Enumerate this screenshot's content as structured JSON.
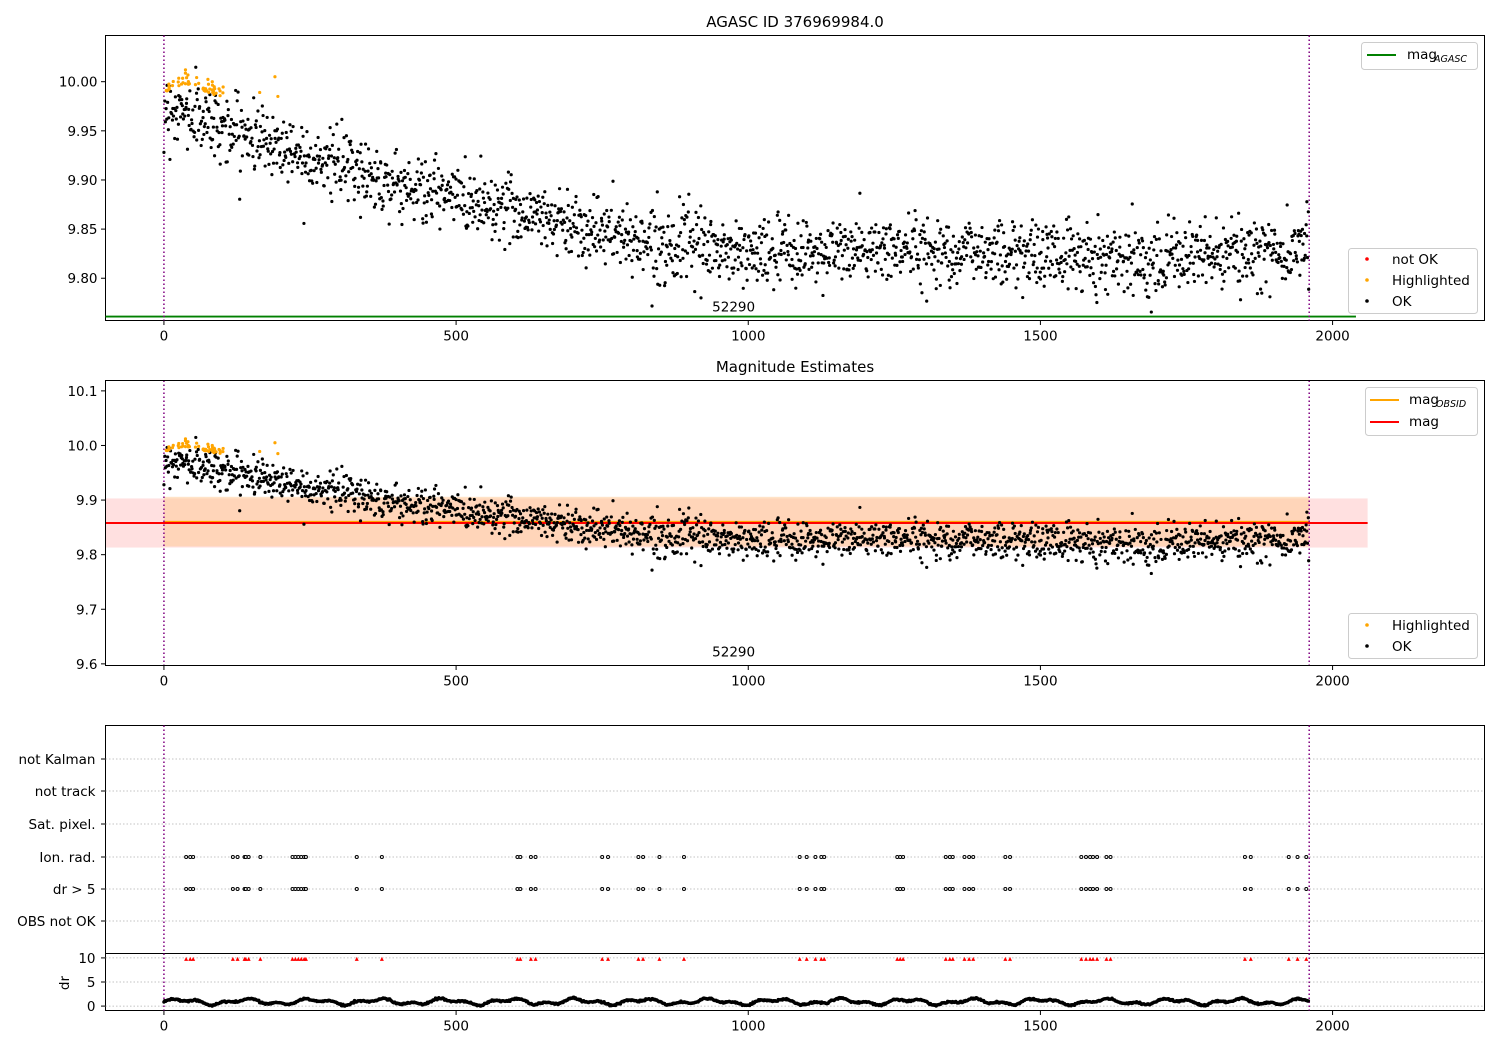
{
  "colors": {
    "ok": "#000000",
    "highlighted": "#ffa500",
    "not_ok": "#ff0000",
    "mag_agasc": "#008000",
    "mag_obsid": "#ffa500",
    "mag": "#ff0000",
    "band": "#ffcccc",
    "band_obsid": "#ffcc99",
    "vline": "#800080",
    "grid": "#b0b0b0"
  },
  "chart_data": [
    {
      "type": "scatter",
      "title": "AGASC ID 376969984.0",
      "xlim": [
        -100,
        2260
      ],
      "ylim": [
        9.757,
        10.047
      ],
      "xticks": [
        0,
        500,
        1000,
        1500,
        2000
      ],
      "yticks": [
        9.8,
        9.85,
        9.9,
        9.95,
        10.0
      ],
      "ytick_labels": [
        "9.80",
        "9.85",
        "9.90",
        "9.95",
        "10.00"
      ],
      "obsid_label": "52290",
      "obsid_label_x": 975,
      "vlines": [
        0,
        1960
      ],
      "hlines": [
        {
          "name": "mag_AGASC",
          "y": 9.761,
          "x": [
            -100,
            2040
          ]
        }
      ],
      "legend_lines": [
        {
          "name": "mag",
          "sub": "AGASC",
          "color_key": "mag_agasc"
        }
      ],
      "legend_points": [
        {
          "name": "not OK",
          "color_key": "not_ok"
        },
        {
          "name": "Highlighted",
          "color_key": "highlighted"
        },
        {
          "name": "OK",
          "color_key": "ok"
        }
      ],
      "series": [
        {
          "name": "OK",
          "values_ref": "main_ok"
        },
        {
          "name": "Highlighted",
          "values_ref": "main_hl"
        }
      ],
      "series_model": {
        "n_points": 1960,
        "x_range": [
          0,
          1960
        ],
        "trend": [
          [
            0,
            9.975
          ],
          [
            100,
            9.955
          ],
          [
            200,
            9.935
          ],
          [
            400,
            9.895
          ],
          [
            600,
            9.87
          ],
          [
            800,
            9.84
          ],
          [
            1000,
            9.825
          ],
          [
            1300,
            9.83
          ],
          [
            1500,
            9.825
          ],
          [
            1700,
            9.82
          ],
          [
            1900,
            9.825
          ],
          [
            1960,
            9.838
          ]
        ],
        "scatter_sd": 0.017,
        "highlighted_x_range": [
          0,
          200
        ],
        "highlighted_trend": [
          [
            0,
            9.99
          ],
          [
            35,
            10.0
          ],
          [
            100,
            9.985
          ],
          [
            190,
            9.99
          ]
        ]
      },
      "legend_position": "upper-right (lines) / lower-right (points)"
    },
    {
      "type": "scatter",
      "title": "Magnitude Estimates",
      "xlim": [
        -100,
        2260
      ],
      "ylim": [
        9.597,
        10.119
      ],
      "xticks": [
        0,
        500,
        1000,
        1500,
        2000
      ],
      "yticks": [
        9.6,
        9.7,
        9.8,
        9.9,
        10.0,
        10.1
      ],
      "ytick_labels": [
        "9.6",
        "9.7",
        "9.8",
        "9.9",
        "10.0",
        "10.1"
      ],
      "obsid_label": "52290",
      "obsid_label_x": 975,
      "vlines": [
        0,
        1960
      ],
      "mag": 9.858,
      "mag_obsid": 9.86,
      "band": [
        9.813,
        9.903
      ],
      "band_obsid": [
        9.815,
        9.906
      ],
      "band_x": [
        -100,
        2060
      ],
      "band_obsid_x": [
        0,
        1960
      ],
      "legend_lines": [
        {
          "name": "mag",
          "sub": "OBSID",
          "color_key": "mag_obsid"
        },
        {
          "name": "mag",
          "sub": "",
          "color_key": "mag"
        }
      ],
      "legend_points": [
        {
          "name": "Highlighted",
          "color_key": "highlighted"
        },
        {
          "name": "OK",
          "color_key": "ok"
        }
      ],
      "legend_position": "upper-right (lines) / lower-right (points)"
    },
    {
      "type": "scatter",
      "title": "",
      "xlim": [
        -100,
        2260
      ],
      "xticks": [
        0,
        500,
        1000,
        1500,
        2000
      ],
      "flag_rows": [
        "not Kalman",
        "not track",
        "Sat. pixel.",
        "Ion. rad.",
        "dr > 5",
        "OBS not OK"
      ],
      "flag_events_x": [
        38,
        45,
        50,
        118,
        126,
        138,
        140,
        145,
        165,
        220,
        225,
        230,
        235,
        240,
        243,
        330,
        373,
        605,
        610,
        628,
        636,
        750,
        760,
        812,
        820,
        848,
        890,
        1088,
        1100,
        1115,
        1125,
        1130,
        1255,
        1260,
        1265,
        1338,
        1345,
        1350,
        1370,
        1378,
        1385,
        1440,
        1448,
        1570,
        1578,
        1585,
        1590,
        1597,
        1613,
        1620,
        1850,
        1860,
        1925,
        1940,
        1955
      ],
      "dr_ylabel": "dr",
      "dr_yticks": [
        0,
        5,
        10
      ],
      "dr_ylim": [
        -0.5,
        10.5
      ],
      "dr_flag_value": 9.8,
      "dr_model": {
        "mean": 0.9,
        "spread": 0.6,
        "x_range": [
          0,
          1960
        ]
      }
    }
  ]
}
